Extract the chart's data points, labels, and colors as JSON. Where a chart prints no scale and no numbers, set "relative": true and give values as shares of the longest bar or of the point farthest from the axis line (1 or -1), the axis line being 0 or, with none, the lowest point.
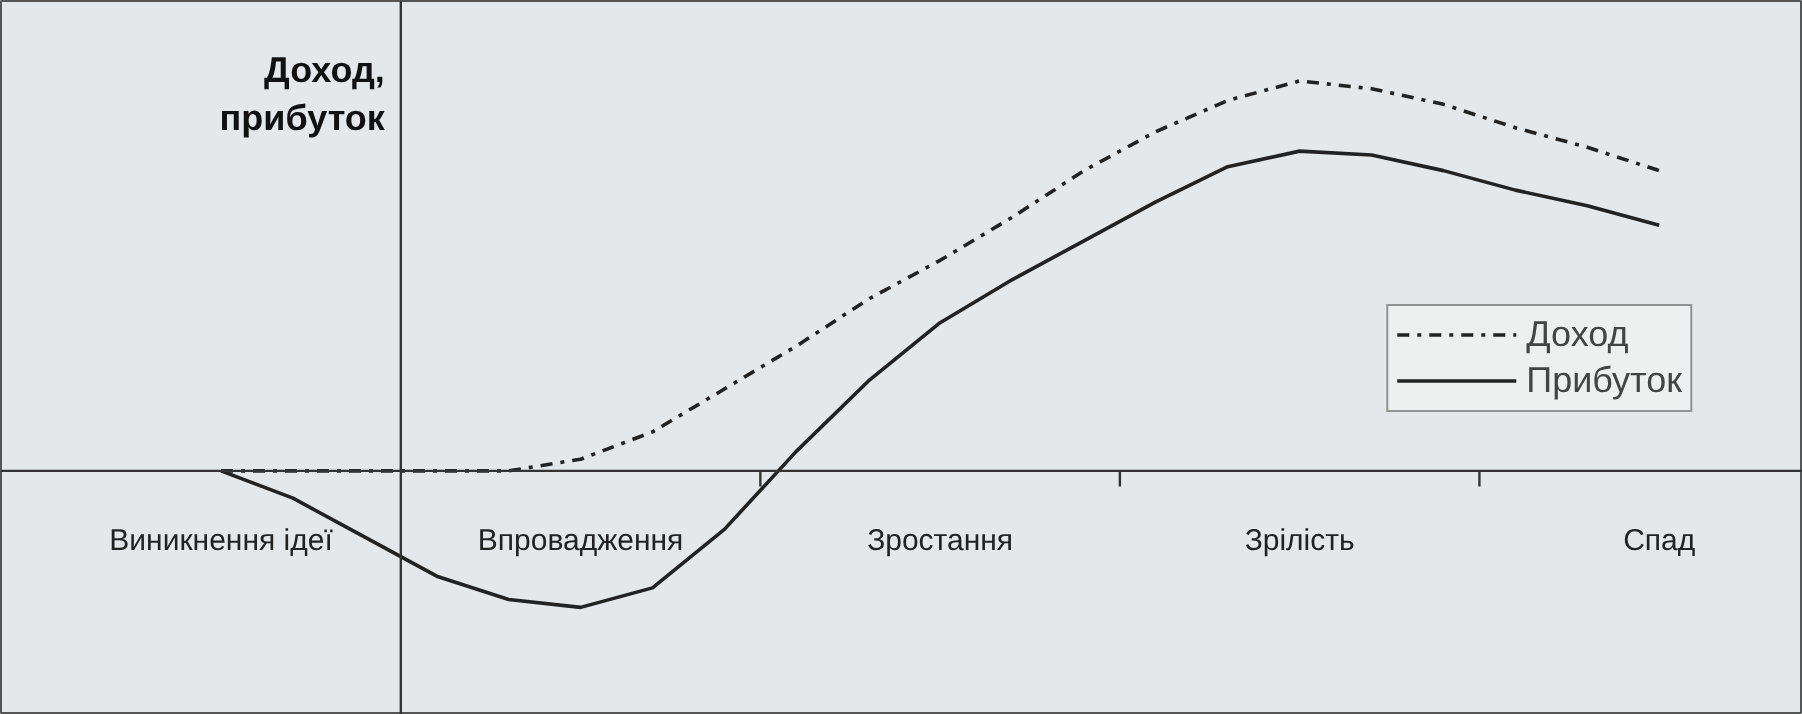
{
  "chart_data": {
    "type": "line",
    "relative": true,
    "ylabel": "Доход,\nприбуток",
    "legend": "right",
    "grid": false,
    "categories": [
      "Виникнення ідеї",
      null,
      null,
      null,
      null,
      "Впровадження",
      null,
      null,
      null,
      null,
      "Зростання",
      null,
      null,
      null,
      null,
      "Зрілість",
      null,
      null,
      null,
      null,
      "Спад"
    ],
    "series": [
      {
        "name": "Доход",
        "color": "#222222",
        "line_style": "dashdot",
        "values": [
          0,
          0,
          0,
          0,
          0,
          0.03,
          0.1,
          0.21,
          0.32,
          0.44,
          0.54,
          0.65,
          0.77,
          0.87,
          0.95,
          1.0,
          0.98,
          0.94,
          0.88,
          0.83,
          0.77
        ]
      },
      {
        "name": "Прибуток",
        "color": "#222222",
        "line_style": "solid",
        "values": [
          0,
          -0.07,
          -0.17,
          -0.27,
          -0.33,
          -0.35,
          -0.3,
          -0.15,
          0.05,
          0.23,
          0.38,
          0.49,
          0.59,
          0.69,
          0.78,
          0.82,
          0.81,
          0.77,
          0.72,
          0.68,
          0.63
        ]
      }
    ]
  }
}
